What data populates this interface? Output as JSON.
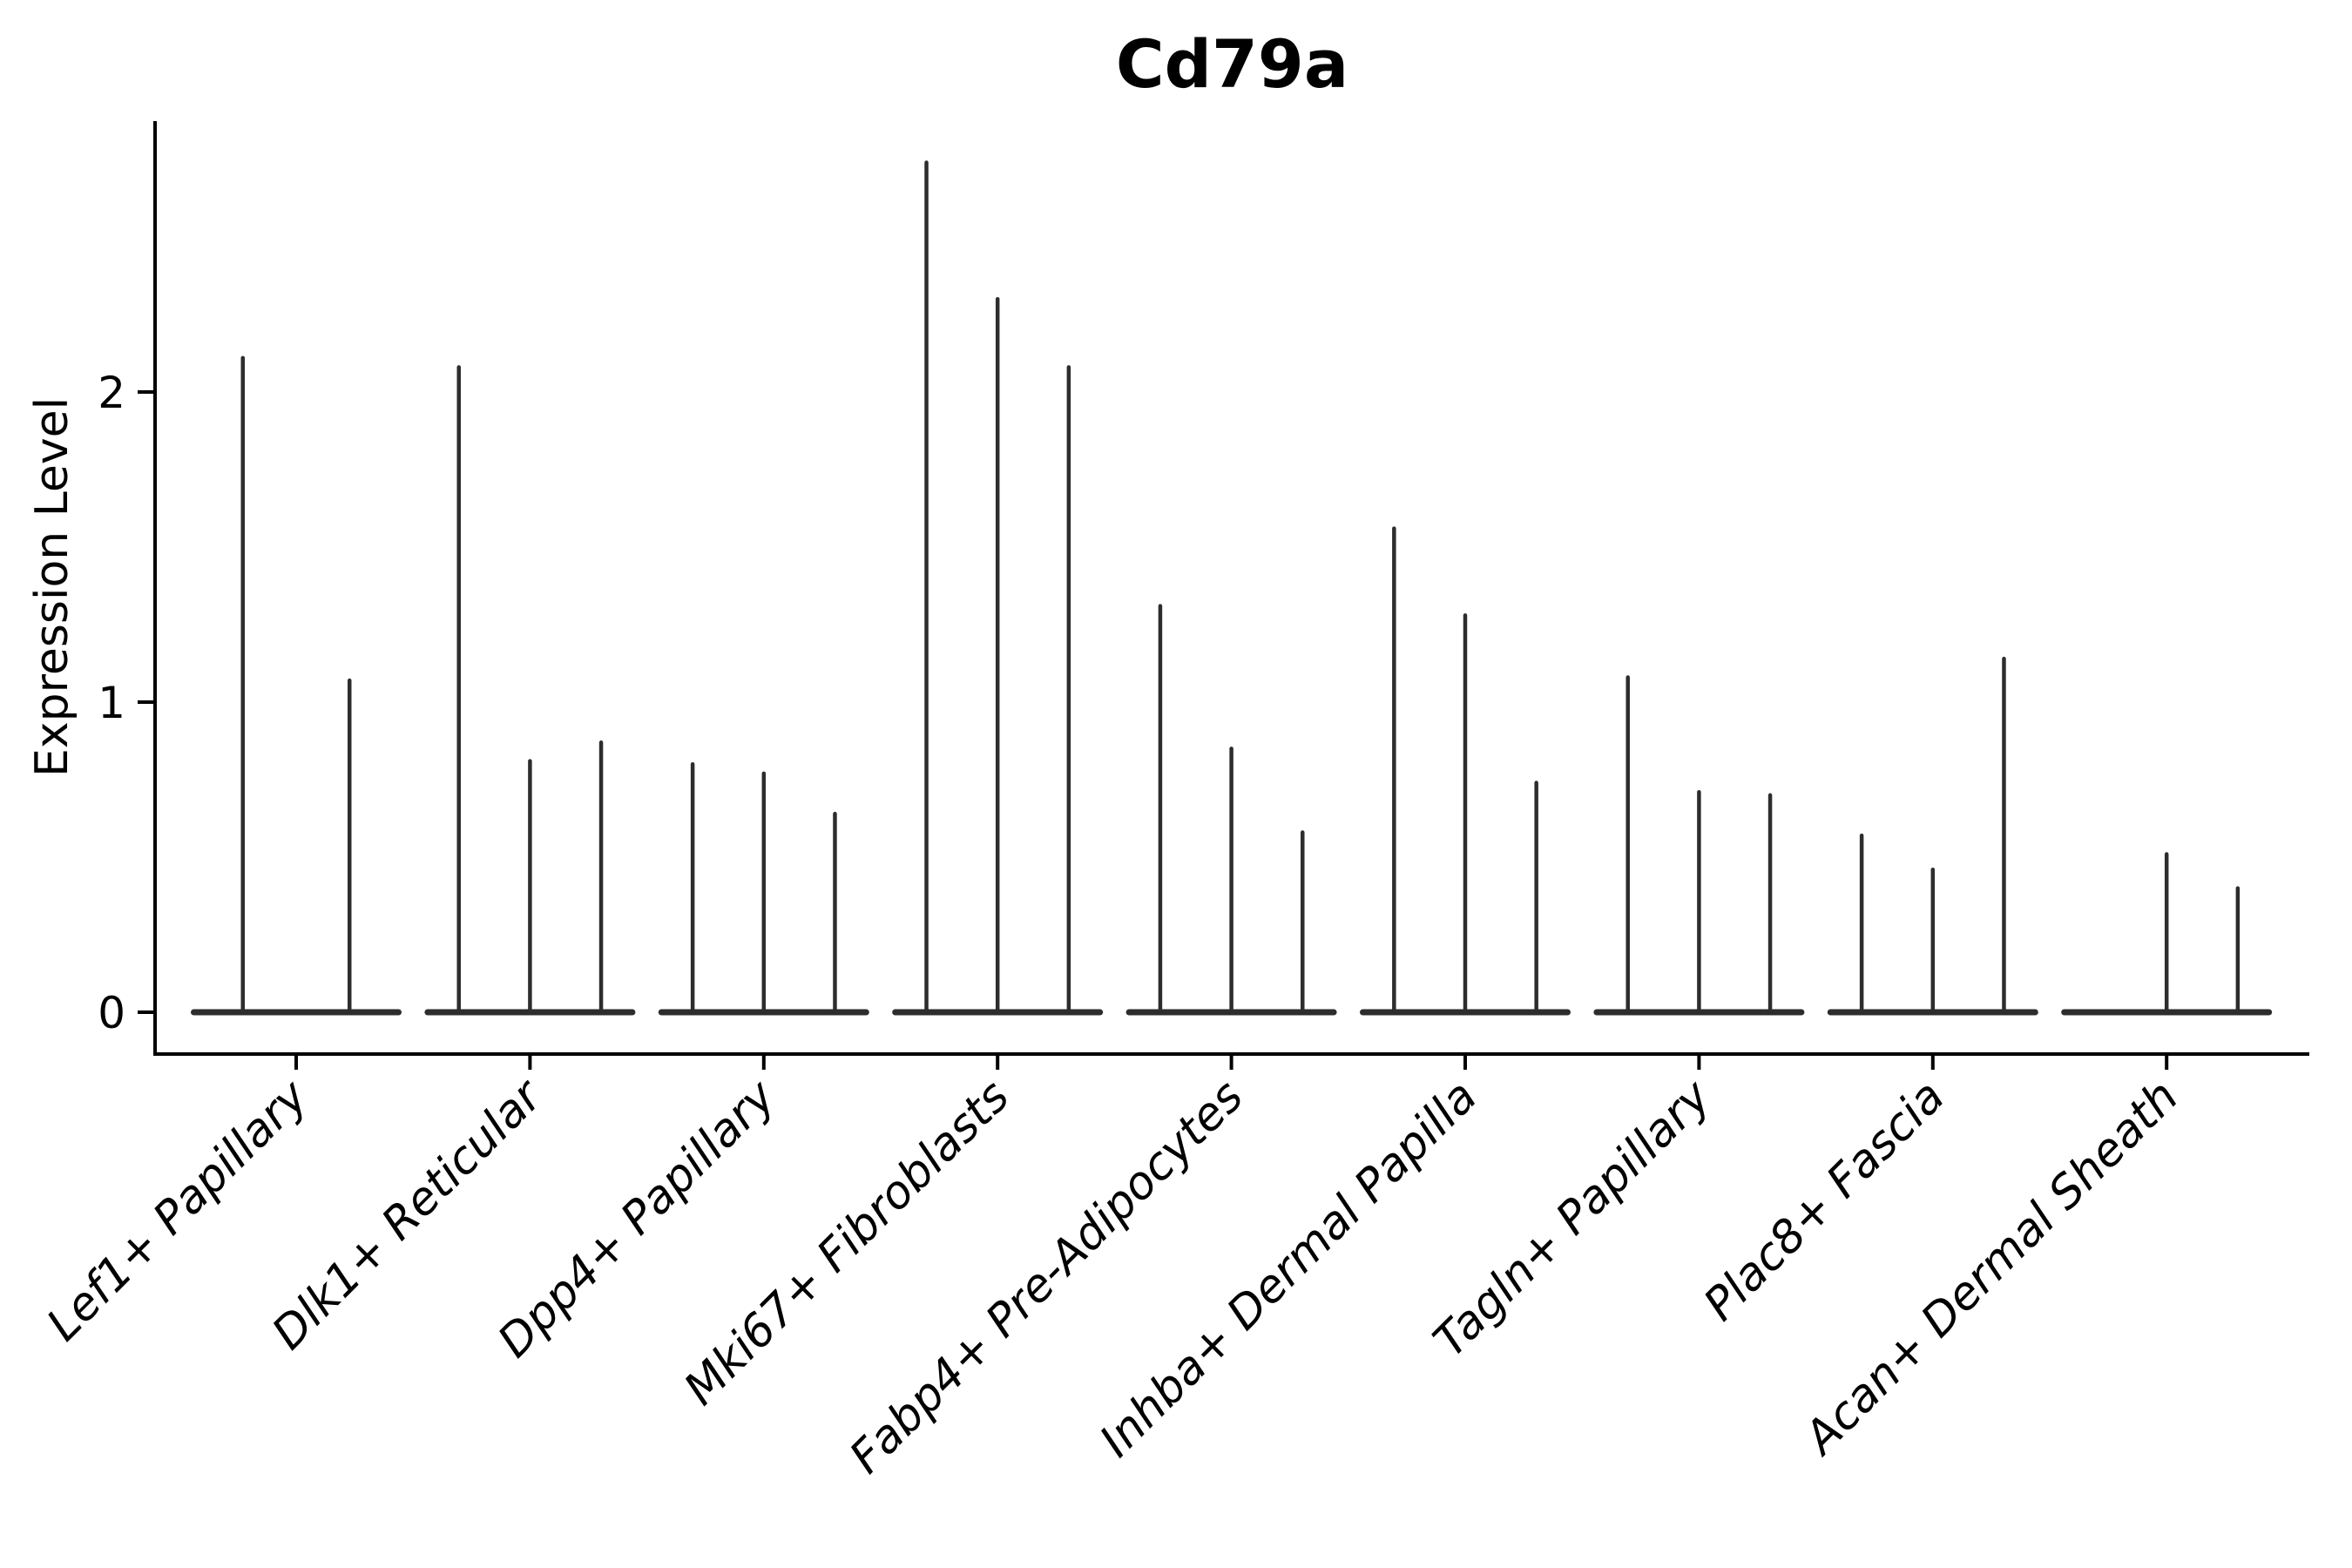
{
  "figure": {
    "background": "#ffffff"
  },
  "chart_data": {
    "type": "violin",
    "title": "Cd79a",
    "xlabel": "",
    "ylabel": "Expression Level",
    "yticks": [
      0,
      1,
      2
    ],
    "ylim": [
      -0.13,
      2.87
    ],
    "grid": false,
    "legend": "none",
    "categories": [
      "Lef1+ Papillary",
      "Dlk1+ Reticular",
      "Dpp4+ Papillary",
      "Mki67+ Fibroblasts",
      "Fabp4+ Pre-Adipocytes",
      "Inhba+ Dermal Papilla",
      "Tagln+ Papillary",
      "Plac8+ Fascia",
      "Acan+ Dermal Sheath"
    ],
    "violin_note": "each category holds 2-3 ultra-thin violins (most mass at 0); value = top of expression spike, 0 = flat violin with no spike",
    "violins": [
      [
        2.11,
        1.07
      ],
      [
        2.08,
        0.81,
        0.87
      ],
      [
        0.8,
        0.77,
        0.64
      ],
      [
        2.74,
        2.3,
        2.08
      ],
      [
        1.31,
        0.85,
        0.58
      ],
      [
        1.56,
        1.28,
        0.74
      ],
      [
        1.08,
        0.71,
        0.7
      ],
      [
        0.57,
        0.46,
        1.14
      ],
      [
        0,
        0.51,
        0.4
      ]
    ],
    "colors": {
      "violin": "#2d2d2d",
      "axis": "#000000",
      "text": "#000000"
    }
  }
}
